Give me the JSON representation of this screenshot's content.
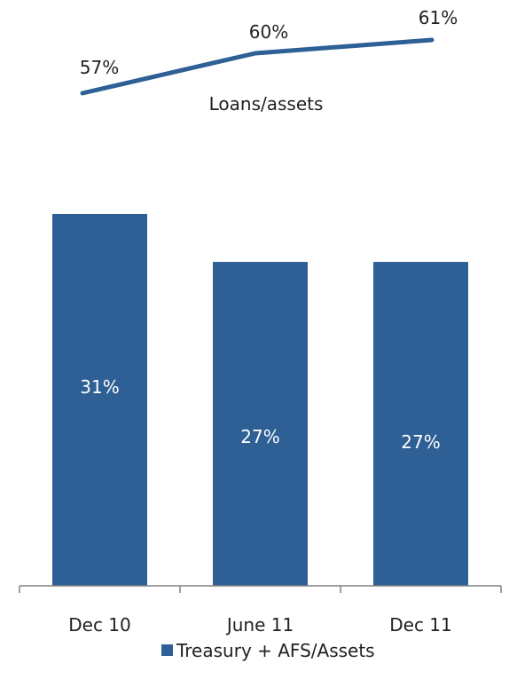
{
  "chart_data": {
    "type": "bar",
    "categories": [
      "Dec 10",
      "June 11",
      "Dec 11"
    ],
    "series": [
      {
        "name": "Treasury + AFS/Assets",
        "type": "bar",
        "values": [
          31,
          27,
          27
        ],
        "labels": [
          "31%",
          "27%",
          "27%"
        ],
        "color": "#2E5F95"
      },
      {
        "name": "Loans/assets",
        "type": "line",
        "values": [
          57,
          60,
          61
        ],
        "labels": [
          "57%",
          "60%",
          "61%"
        ],
        "color": "#2E5F95"
      }
    ],
    "ylim_bar": [
      0,
      35
    ],
    "legend": {
      "position": "bottom",
      "text": "Treasury + AFS/Assets"
    },
    "line_label": "Loans/assets",
    "grid": false
  }
}
